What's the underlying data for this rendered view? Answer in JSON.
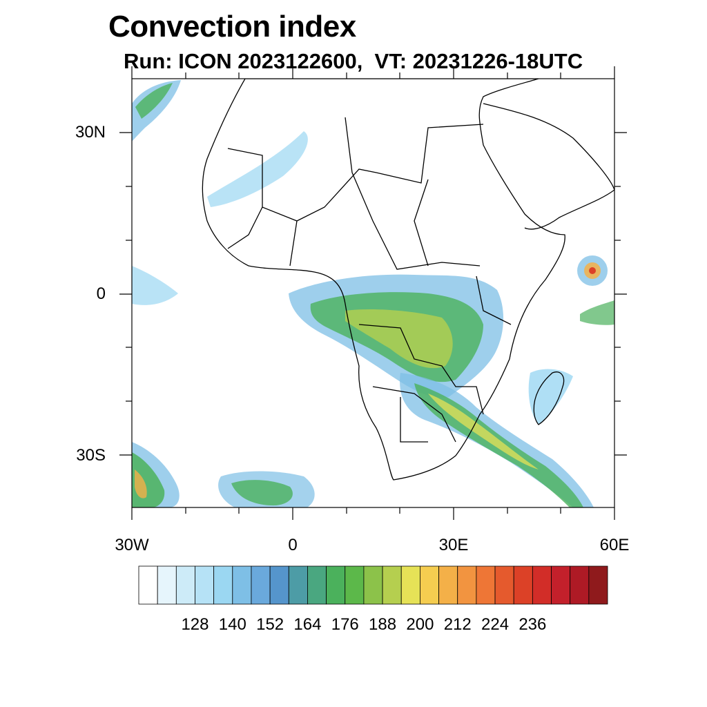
{
  "title": "Convection index",
  "subtitle": "Run: ICON 2023122600,  VT: 20231226-18UTC",
  "map": {
    "region": "Africa",
    "lon_range": [
      -30,
      60
    ],
    "lat_range": [
      -40,
      40
    ],
    "lat_labels": [
      "30N",
      "0",
      "30S"
    ],
    "lon_labels": [
      "30W",
      "0",
      "30E",
      "60E"
    ]
  },
  "colorbar": {
    "colors": [
      "#ffffff",
      "#e6f5fc",
      "#cdebf8",
      "#b6e2f6",
      "#9bd7f2",
      "#7ebfe6",
      "#6aa9dc",
      "#5595cc",
      "#4d9ca6",
      "#4aa780",
      "#4bb15c",
      "#5cb84a",
      "#8cc24a",
      "#b5cf4f",
      "#e6e257",
      "#f5cd50",
      "#f4b048",
      "#f29440",
      "#ee7636",
      "#e55a2d",
      "#dc4127",
      "#d22d28",
      "#c3202b",
      "#ae1a25",
      "#8f1a1c"
    ],
    "tick_labels": [
      "128",
      "140",
      "152",
      "164",
      "176",
      "188",
      "200",
      "212",
      "224",
      "236"
    ]
  }
}
